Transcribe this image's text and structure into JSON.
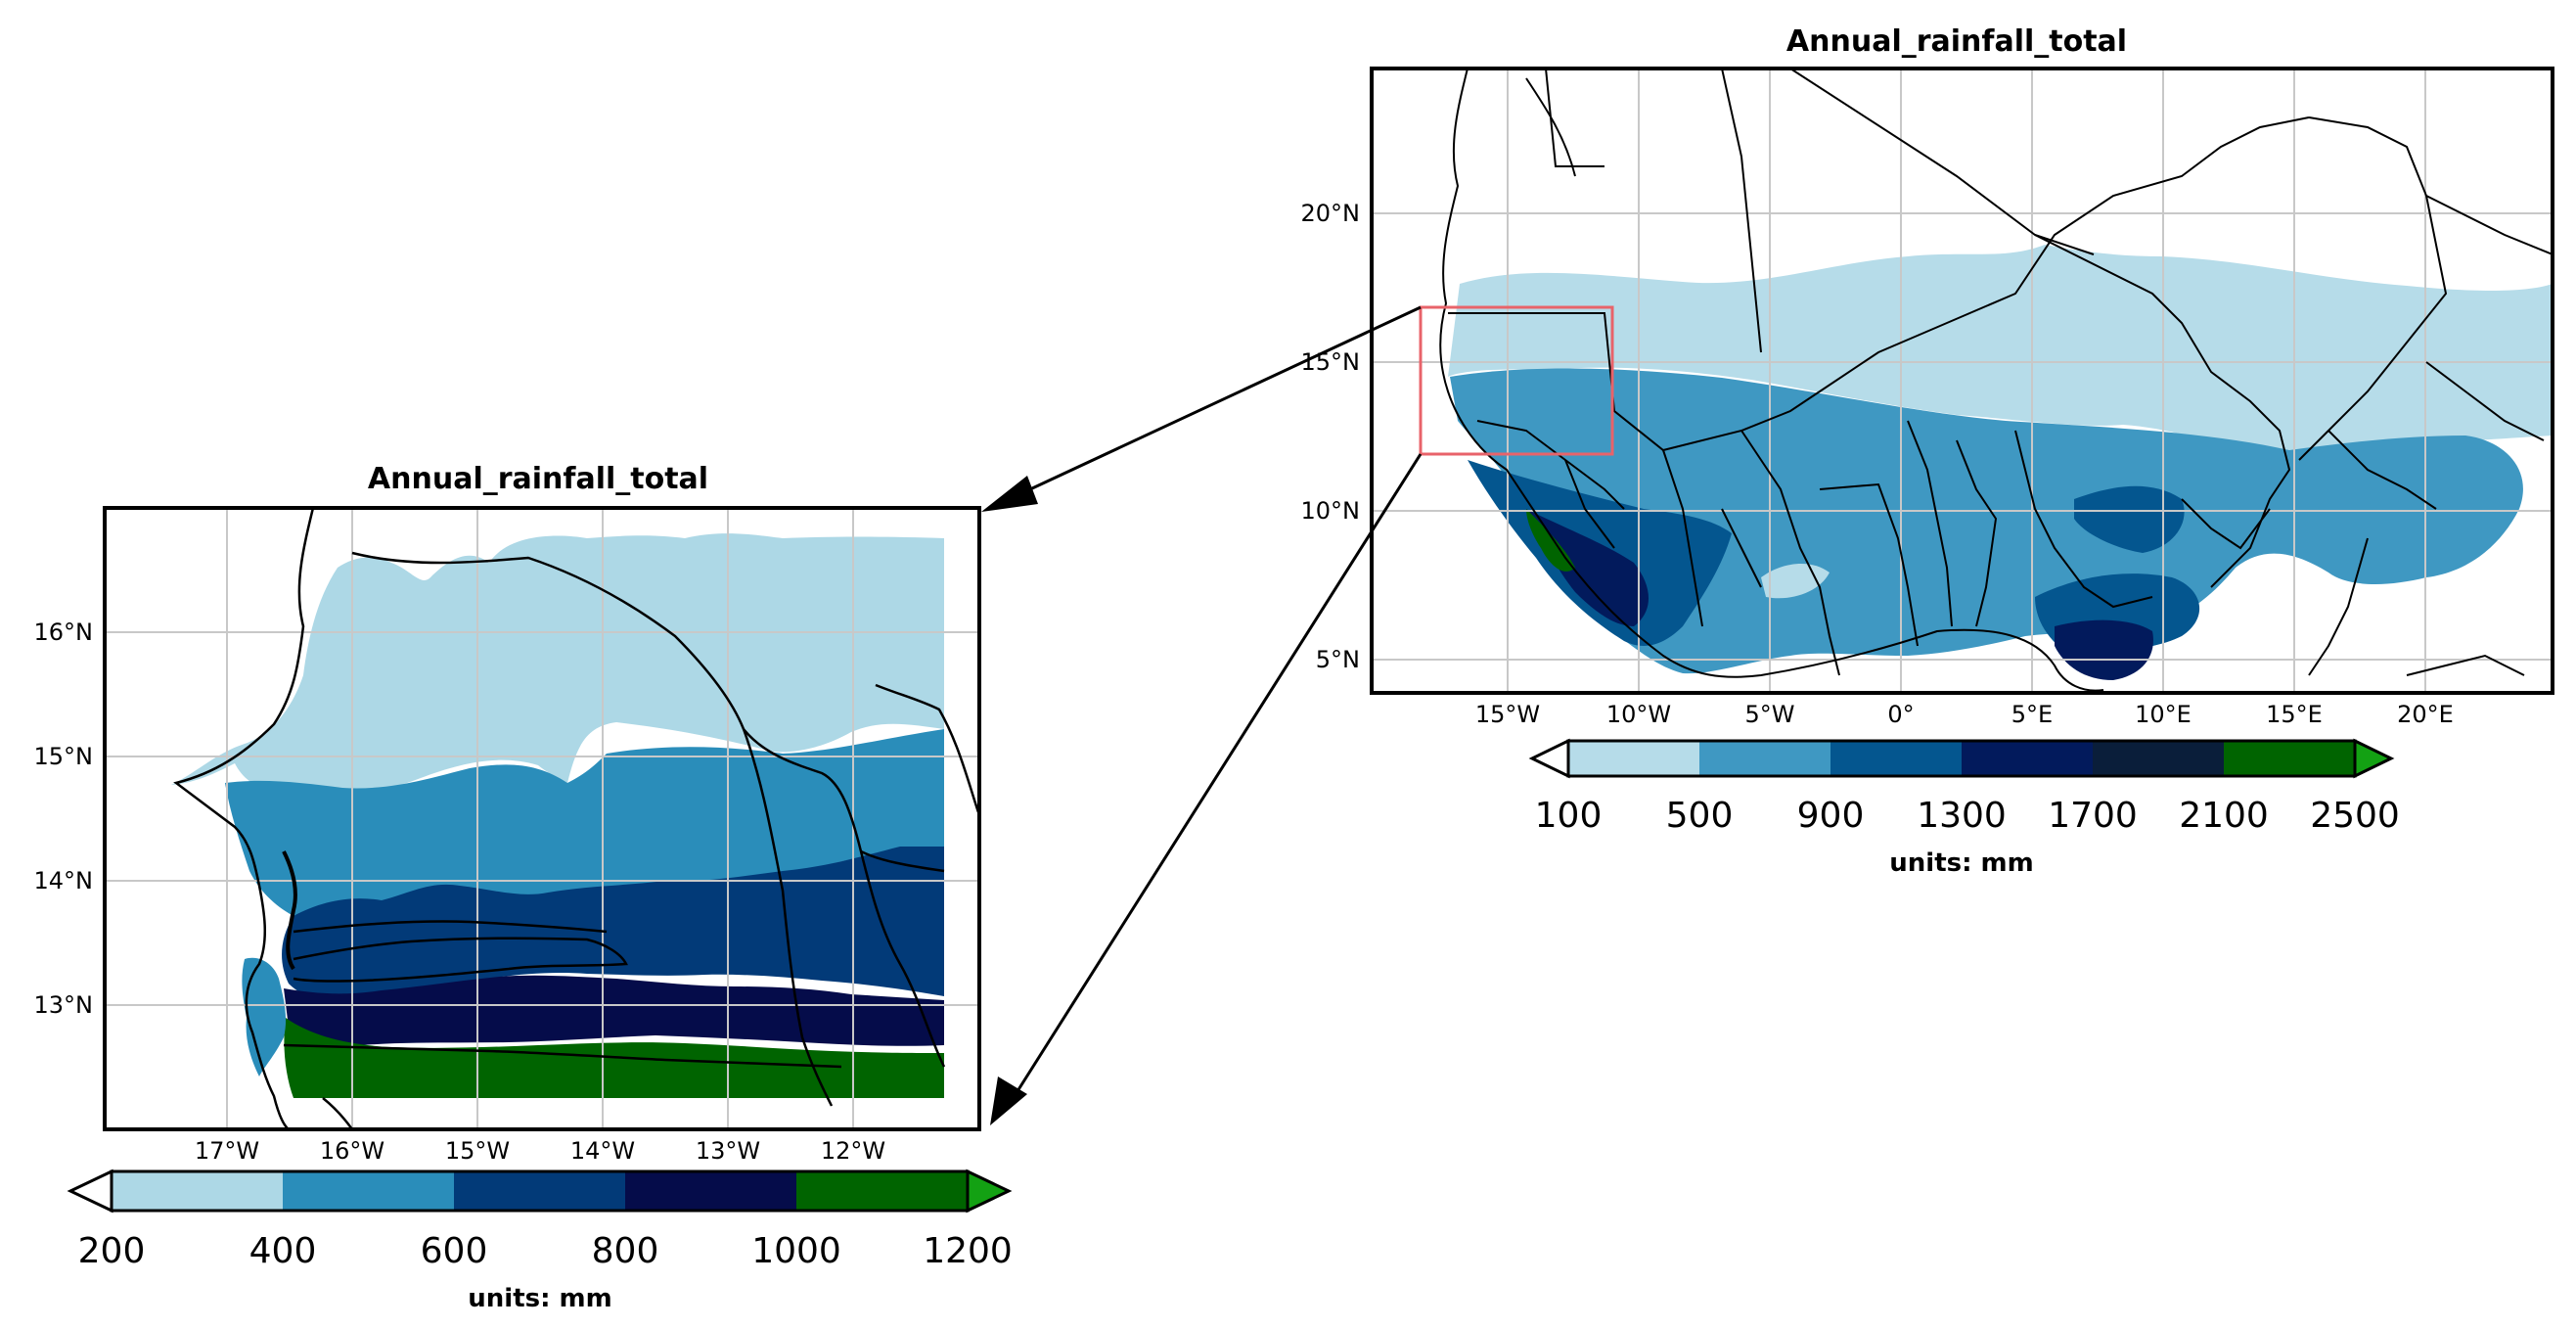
{
  "colors": {
    "detail": [
      "#add8e6",
      "#2a8dba",
      "#023a78",
      "#050c4a",
      "#006400",
      "#13a113"
    ],
    "overview": [
      "#b6dce9",
      "#3f98c2",
      "#04568f",
      "#021a5c",
      "#0a1e3a",
      "#006400",
      "#13a113"
    ],
    "inset_box": "#e8636a",
    "grid": "#c8c8c8",
    "border": "#000000"
  },
  "detail_map": {
    "title": "Annual_rainfall_total",
    "lat_labels": [
      "16°N",
      "15°N",
      "14°N",
      "13°N"
    ],
    "lon_labels": [
      "17°W",
      "16°W",
      "15°W",
      "14°W",
      "13°W",
      "12°W"
    ],
    "colorbar": {
      "ticks": [
        "200",
        "400",
        "600",
        "800",
        "1000",
        "1200"
      ],
      "units": "units: mm"
    }
  },
  "overview_map": {
    "title": "Annual_rainfall_total",
    "lat_labels": [
      "20°N",
      "15°N",
      "10°N",
      "5°N"
    ],
    "lon_labels": [
      "15°W",
      "10°W",
      "5°W",
      "0°",
      "5°E",
      "10°E",
      "15°E",
      "20°E"
    ],
    "colorbar": {
      "ticks": [
        "100",
        "500",
        "900",
        "1300",
        "1700",
        "2100",
        "2500"
      ],
      "units": "units: mm"
    }
  }
}
